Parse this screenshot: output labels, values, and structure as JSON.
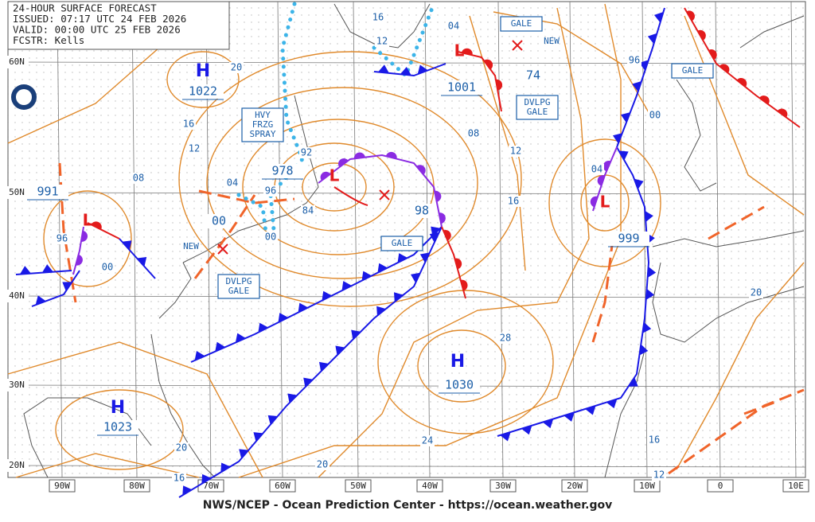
{
  "header": {
    "lines": [
      "24-HOUR SURFACE FORECAST",
      "ISSUED: 07:17 UTC 24 FEB 2026",
      "VALID:  00:00 UTC 25 FEB 2026",
      "FCSTR:  Kells"
    ]
  },
  "lat_labels": [
    "60N",
    "50N",
    "40N",
    "30N",
    "20N"
  ],
  "lon_labels": [
    "90W",
    "80W",
    "70W",
    "60W",
    "50W",
    "40W",
    "30W",
    "20W",
    "10W",
    "0",
    "10E"
  ],
  "centers": [
    {
      "symbol": "H",
      "pressure": "1022"
    },
    {
      "symbol": "L",
      "pressure": "978"
    },
    {
      "symbol": "L",
      "pressure": "991"
    },
    {
      "symbol": "L",
      "pressure": "1001"
    },
    {
      "symbol": "L",
      "pressure": "999"
    },
    {
      "symbol": "H",
      "pressure": "1030"
    },
    {
      "symbol": "H",
      "pressure": "1023"
    }
  ],
  "forecast_pressures": [
    "74",
    "98",
    "00"
  ],
  "isobar_labels": [
    "16",
    "12",
    "04",
    "20",
    "16",
    "12",
    "08",
    "96",
    "00",
    "04",
    "96",
    "92",
    "84",
    "00",
    "08",
    "12",
    "16",
    "04",
    "96",
    "00",
    "28",
    "24",
    "20",
    "20",
    "16",
    "20",
    "16",
    "12"
  ],
  "warnings": [
    [
      "HVY",
      "FRZG",
      "SPRAY"
    ],
    [
      "GALE"
    ],
    [
      "GALE"
    ],
    [
      "DVLPG",
      "GALE"
    ],
    [
      "GALE"
    ],
    [
      "DVLPG",
      "GALE"
    ]
  ],
  "notes": [
    "NEW",
    "NEW"
  ],
  "footer": "NWS/NCEP - Ocean Prediction Center - https://ocean.weather.gov"
}
